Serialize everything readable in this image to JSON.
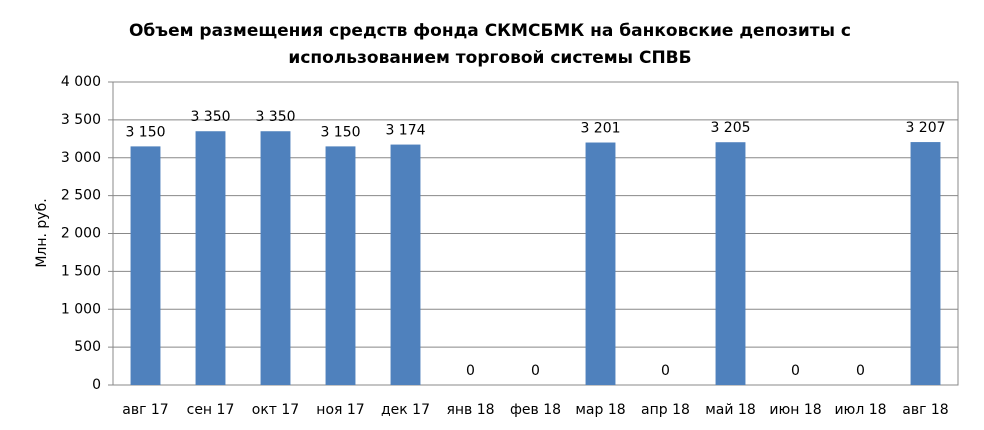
{
  "chart_data": {
    "type": "bar",
    "title": [
      "Объем размещения средств фонда СКМСБМК на банковские депозиты с",
      "использованием торговой системы СПВБ"
    ],
    "y_label": "Млн. руб.",
    "categories": [
      "авг 17",
      "сен 17",
      "окт 17",
      "ноя 17",
      "дек 17",
      "янв 18",
      "фев 18",
      "мар 18",
      "апр 18",
      "май 18",
      "июн 18",
      "июл 18",
      "авг 18"
    ],
    "values": [
      3150,
      3350,
      3350,
      3150,
      3174,
      0,
      0,
      3201,
      0,
      3205,
      0,
      0,
      3207
    ],
    "value_labels": [
      "3 150",
      "3 350",
      "3 350",
      "3 150",
      "3 174",
      "0",
      "0",
      "3 201",
      "0",
      "3 205",
      "0",
      "0",
      "3 207"
    ],
    "color": "#4f81bd",
    "ylim": [
      0,
      4000
    ],
    "yticks": [
      0,
      500,
      {
        "value": 1000,
        "label": "1 000"
      },
      {
        "value": 1500,
        "label": "1 500"
      },
      {
        "value": 2000,
        "label": "2 000"
      },
      {
        "value": 2500,
        "label": "2 500"
      },
      {
        "value": 3000,
        "label": "3 000"
      },
      {
        "value": 3500,
        "label": "3 500"
      },
      {
        "value": 4000,
        "label": "4 000"
      }
    ],
    "grid": true
  }
}
